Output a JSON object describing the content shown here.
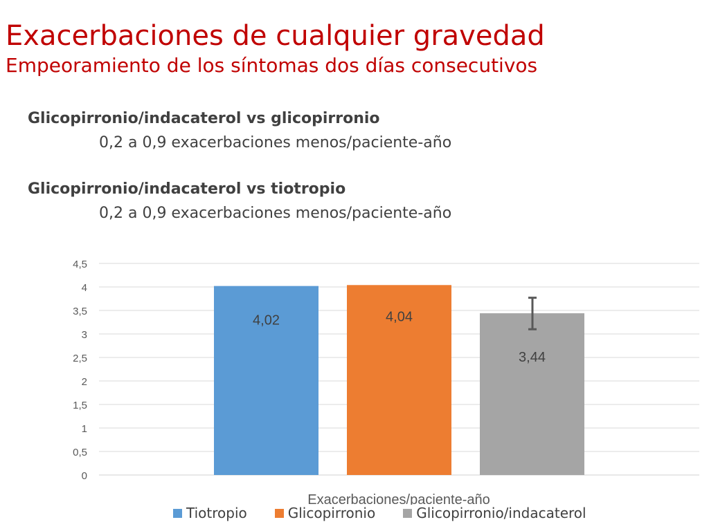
{
  "slide": {
    "title": "Exacerbaciones de cualquier gravedad",
    "subtitle": "Empeoramiento de los síntomas dos días consecutivos"
  },
  "comparisons": [
    {
      "heading": "Glicopirronio/indacaterol vs glicopirronio",
      "detail": "0,2 a 0,9 exacerbaciones menos/paciente-año"
    },
    {
      "heading": "Glicopirronio/indacaterol vs tiotropio",
      "detail": "0,2 a 0,9 exacerbaciones menos/paciente-año"
    }
  ],
  "chart_data": {
    "type": "bar",
    "xlabel": "Exacerbaciones/paciente-año",
    "ylabel": "",
    "ylim": [
      0,
      4.5
    ],
    "yticks": [
      "0",
      "0,5",
      "1",
      "1,5",
      "2",
      "2,5",
      "3",
      "3,5",
      "4",
      "4,5"
    ],
    "grid": true,
    "legend_position": "bottom",
    "categories": [
      "Exacerbaciones/paciente-año"
    ],
    "series": [
      {
        "name": "Tiotropio",
        "values": [
          4.02
        ],
        "label": "4,02",
        "color": "#5b9bd5"
      },
      {
        "name": "Glicopirronio",
        "values": [
          4.04
        ],
        "label": "4,04",
        "color": "#ed7d31"
      },
      {
        "name": "Glicopirronio/indacaterol",
        "values": [
          3.44
        ],
        "label": "3,44",
        "color": "#a5a5a5",
        "error_range": [
          3.1,
          3.77
        ]
      }
    ]
  }
}
